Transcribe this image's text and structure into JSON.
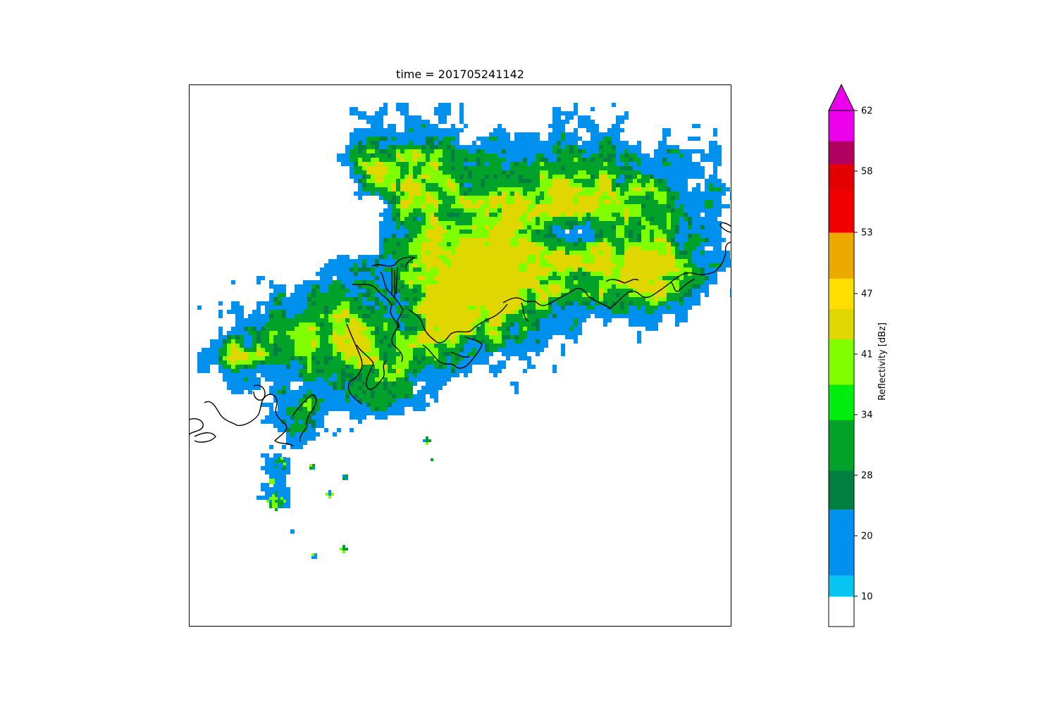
{
  "chart_data": {
    "type": "heatmap",
    "title": "time = 201705241142",
    "colorbar": {
      "label": "Reflectivity [dBz]",
      "ticks": [
        10,
        20,
        28,
        34,
        41,
        47,
        53,
        58,
        62
      ],
      "extend": "max",
      "bins": [
        {
          "from": 6.5,
          "to": 10,
          "color": "#ffffff"
        },
        {
          "from": 10,
          "to": 13.5,
          "color": "#08c4f0"
        },
        {
          "from": 13.5,
          "to": 23.5,
          "color": "#0090ee"
        },
        {
          "from": 23.5,
          "to": 28.5,
          "color": "#008040"
        },
        {
          "from": 28.5,
          "to": 33.5,
          "color": "#00a22a"
        },
        {
          "from": 33.5,
          "to": 37.5,
          "color": "#00ee0e"
        },
        {
          "from": 37.5,
          "to": 42.5,
          "color": "#80ff00"
        },
        {
          "from": 42.5,
          "to": 45.5,
          "color": "#e0d600"
        },
        {
          "from": 45.5,
          "to": 48.5,
          "color": "#ffde00"
        },
        {
          "from": 48.5,
          "to": 53,
          "color": "#ecaa00"
        },
        {
          "from": 53,
          "to": 56.5,
          "color": "#f00000"
        },
        {
          "from": 56.5,
          "to": 58.5,
          "color": "#e20000"
        },
        {
          "from": 58.5,
          "to": 60,
          "color": "#b00060"
        },
        {
          "from": 60,
          "to": 62,
          "color": "#ec00ec"
        }
      ],
      "over_color": "#ec00ec"
    }
  }
}
